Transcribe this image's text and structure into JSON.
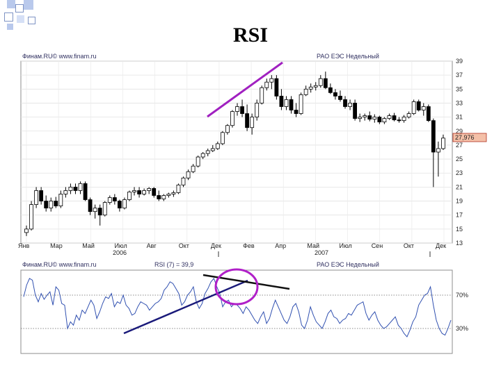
{
  "slide": {
    "title": "RSI"
  },
  "theme": {
    "trendline": "#a020c0",
    "rsi_trendline": "#1a1a7a",
    "resistance": "#111111",
    "circle": "#b020c8",
    "rsi_line": "#3050b0",
    "price_box": "#f4c0a8"
  },
  "chart_data": [
    {
      "type": "candlestick",
      "header_left": "Финам.RU© www.finam.ru",
      "header_right": "РАО ЕЭС Недельный",
      "y_ticks": [
        "39",
        "37",
        "35",
        "33",
        "31",
        "29",
        "27",
        "25",
        "23",
        "21",
        "19",
        "17",
        "15",
        "13"
      ],
      "ylim": [
        13,
        39
      ],
      "last_price": "27,976",
      "x_ticks": [
        "Янв",
        "Мар",
        "Май",
        "Июл",
        "Авг",
        "Окт",
        "Дек",
        "Фев",
        "Апр",
        "Май",
        "Июл",
        "Сен",
        "Окт",
        "Дек"
      ],
      "year_labels": [
        "2006",
        "2007"
      ],
      "candles": [
        [
          14.5,
          15.5,
          14,
          15
        ],
        [
          15,
          19,
          14.8,
          18.5
        ],
        [
          18.5,
          21,
          18,
          20.5
        ],
        [
          20.5,
          21,
          18.5,
          19
        ],
        [
          19,
          19.8,
          17.5,
          18
        ],
        [
          18,
          19.5,
          17.5,
          19
        ],
        [
          19,
          19.6,
          18,
          18.3
        ],
        [
          18.3,
          20.5,
          18,
          20
        ],
        [
          20,
          21,
          19.5,
          20.5
        ],
        [
          20.5,
          21.5,
          20,
          21
        ],
        [
          21,
          21.5,
          20,
          20.5
        ],
        [
          20.5,
          21.8,
          20,
          21.5
        ],
        [
          21.5,
          21.8,
          19,
          19.2
        ],
        [
          19.2,
          19.5,
          17,
          17.5
        ],
        [
          17.5,
          18.5,
          16.5,
          18
        ],
        [
          18,
          18.5,
          15.5,
          17
        ],
        [
          17,
          19,
          16.8,
          18.8
        ],
        [
          18.8,
          19.8,
          18.5,
          19.5
        ],
        [
          19.5,
          20,
          18.5,
          19
        ],
        [
          19,
          19.2,
          17.5,
          18
        ],
        [
          18,
          19.5,
          17.8,
          19.2
        ],
        [
          19.2,
          20.5,
          19,
          20.3
        ],
        [
          20.3,
          21,
          19.8,
          20.5
        ],
        [
          20.5,
          21,
          19.5,
          20
        ],
        [
          20,
          20.8,
          19.8,
          20.5
        ],
        [
          20.5,
          21,
          20,
          20.8
        ],
        [
          20.8,
          21,
          19.5,
          19.8
        ],
        [
          19.8,
          20.5,
          19,
          19.3
        ],
        [
          19.3,
          20,
          19,
          19.8
        ],
        [
          19.8,
          20.2,
          19.5,
          20
        ],
        [
          20,
          20.5,
          19.6,
          20.2
        ],
        [
          20.2,
          21.5,
          20,
          21.3
        ],
        [
          21.3,
          22.5,
          21,
          22.3
        ],
        [
          22.3,
          23.5,
          22,
          23.2
        ],
        [
          23.2,
          24.3,
          23,
          24
        ],
        [
          24,
          25.5,
          23.8,
          25.3
        ],
        [
          25.3,
          26,
          25,
          25.8
        ],
        [
          25.8,
          26.5,
          25.4,
          26.2
        ],
        [
          26.2,
          27,
          26,
          26.5
        ],
        [
          26.5,
          27.5,
          26.3,
          27.2
        ],
        [
          27.2,
          29,
          27,
          28.8
        ],
        [
          28.8,
          30,
          28.5,
          29.8
        ],
        [
          29.8,
          32,
          29.5,
          31.8
        ],
        [
          31.8,
          33,
          31.2,
          32.5
        ],
        [
          32.5,
          33.5,
          31,
          31.5
        ],
        [
          31.5,
          32.8,
          29,
          29.5
        ],
        [
          29.5,
          31.5,
          28.5,
          31
        ],
        [
          31,
          33.5,
          30.5,
          33
        ],
        [
          33,
          35.5,
          32.8,
          35.2
        ],
        [
          35.2,
          36.5,
          34.8,
          36
        ],
        [
          36,
          37,
          35,
          36.5
        ],
        [
          36.5,
          37,
          33.5,
          34
        ],
        [
          34,
          35,
          32,
          32.5
        ],
        [
          32.5,
          34,
          32,
          33.5
        ],
        [
          33.5,
          34,
          31.5,
          32
        ],
        [
          32,
          33,
          31,
          31.5
        ],
        [
          31.5,
          34.5,
          31.3,
          34.2
        ],
        [
          34.2,
          35.5,
          34,
          35
        ],
        [
          35,
          35.8,
          34.5,
          35.3
        ],
        [
          35.3,
          36,
          34.8,
          35.5
        ],
        [
          35.5,
          37,
          35.2,
          36.5
        ],
        [
          36.5,
          37.5,
          35,
          35.2
        ],
        [
          35.2,
          35.8,
          34.3,
          34.5
        ],
        [
          34.5,
          35,
          33.5,
          34
        ],
        [
          34,
          34.8,
          33.2,
          33.5
        ],
        [
          33.5,
          34,
          32.2,
          32.5
        ],
        [
          32.5,
          33.5,
          32,
          33
        ],
        [
          33,
          33.5,
          30.5,
          30.8
        ],
        [
          30.8,
          31.5,
          30.3,
          31
        ],
        [
          31,
          31.5,
          30.5,
          31.2
        ],
        [
          31.2,
          31.8,
          30.4,
          30.7
        ],
        [
          30.7,
          31.4,
          30.2,
          31
        ],
        [
          31,
          31.2,
          30,
          30.3
        ],
        [
          30.3,
          31,
          30,
          30.8
        ],
        [
          30.8,
          31.5,
          30.6,
          31.2
        ],
        [
          31.2,
          31.6,
          30.4,
          30.6
        ],
        [
          30.6,
          31,
          30.2,
          30.5
        ],
        [
          30.5,
          31.3,
          30.2,
          31
        ],
        [
          31,
          31.8,
          30.8,
          31.5
        ],
        [
          31.5,
          33.5,
          31.3,
          33.2
        ],
        [
          33.2,
          33.5,
          31.8,
          32
        ],
        [
          32,
          33,
          31.2,
          32.5
        ],
        [
          32.5,
          32.8,
          30.3,
          30.5
        ],
        [
          30.5,
          30.8,
          21,
          26
        ],
        [
          26,
          27.5,
          22.5,
          26.5
        ],
        [
          26.5,
          28.5,
          26.3,
          28
        ]
      ]
    },
    {
      "type": "line",
      "header_left": "Финам.RU© www.finam.ru",
      "series_label": "RSI (7) = 39,9",
      "header_right": "РАО ЕЭС Недельный",
      "y_ticks": [
        "70%",
        "30%"
      ],
      "reference_levels": [
        70,
        30
      ],
      "ylim": [
        0,
        100
      ],
      "values": [
        68,
        82,
        90,
        88,
        70,
        62,
        72,
        65,
        70,
        74,
        58,
        80,
        76,
        60,
        58,
        30,
        38,
        34,
        46,
        40,
        52,
        48,
        56,
        64,
        58,
        42,
        50,
        60,
        68,
        66,
        72,
        56,
        62,
        60,
        70,
        58,
        54,
        46,
        48,
        56,
        62,
        60,
        58,
        52,
        56,
        60,
        62,
        66,
        76,
        80,
        86,
        84,
        78,
        72,
        58,
        62,
        70,
        74,
        80,
        62,
        54,
        60,
        72,
        78,
        86,
        90,
        80,
        72,
        56,
        62,
        64,
        56,
        60,
        58,
        54,
        48,
        56,
        52,
        46,
        40,
        36,
        44,
        50,
        36,
        42,
        54,
        64,
        56,
        48,
        40,
        36,
        44,
        56,
        60,
        50,
        34,
        30,
        40,
        56,
        46,
        38,
        34,
        30,
        38,
        48,
        52,
        44,
        42,
        36,
        40,
        42,
        48,
        46,
        52,
        58,
        60,
        62,
        48,
        40,
        46,
        50,
        40,
        34,
        30,
        32,
        36,
        40,
        44,
        34,
        30,
        24,
        20,
        28,
        38,
        44,
        58,
        64,
        70,
        72,
        80,
        58,
        40,
        30,
        24,
        22,
        30,
        40
      ]
    }
  ]
}
